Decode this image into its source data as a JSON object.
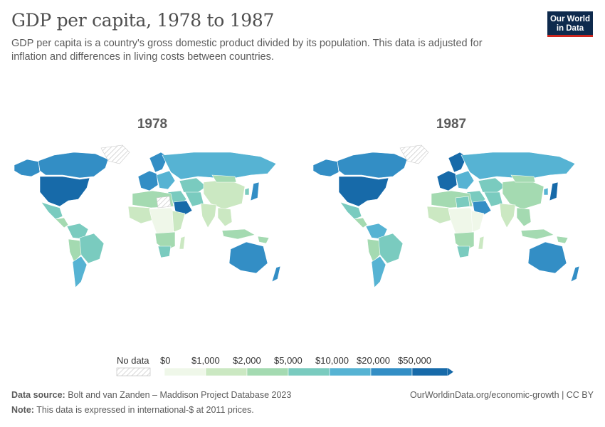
{
  "header": {
    "title": "GDP per capita, 1978 to 1987",
    "subtitle": "GDP per capita is a country's gross domestic product divided by its population. This data is adjusted for inflation and differences in living costs between countries.",
    "logo_line1": "Our World",
    "logo_line2": "in Data"
  },
  "maps": [
    {
      "year": "1978"
    },
    {
      "year": "1987"
    }
  ],
  "legend": {
    "no_data_label": "No data",
    "bins": [
      "$0",
      "$1,000",
      "$2,000",
      "$5,000",
      "$10,000",
      "$20,000",
      "$50,000"
    ],
    "colors": [
      "#eff7e9",
      "#cbe8c2",
      "#a4dab1",
      "#7acbbf",
      "#56b3d3",
      "#338ec5",
      "#176aa9"
    ]
  },
  "footer": {
    "source_label": "Data source:",
    "source_text": "Bolt and van Zanden – Maddison Project Database 2023",
    "note_label": "Note:",
    "note_text": "This data is expressed in international-$ at 2011 prices.",
    "url": "OurWorldinData.org/economic-growth | CC BY"
  },
  "colors": {
    "no_data_hatch": "#cccccc",
    "title": "#4e4e4e",
    "logo_bg": "#0e2a4d",
    "logo_accent": "#ce261e"
  }
}
